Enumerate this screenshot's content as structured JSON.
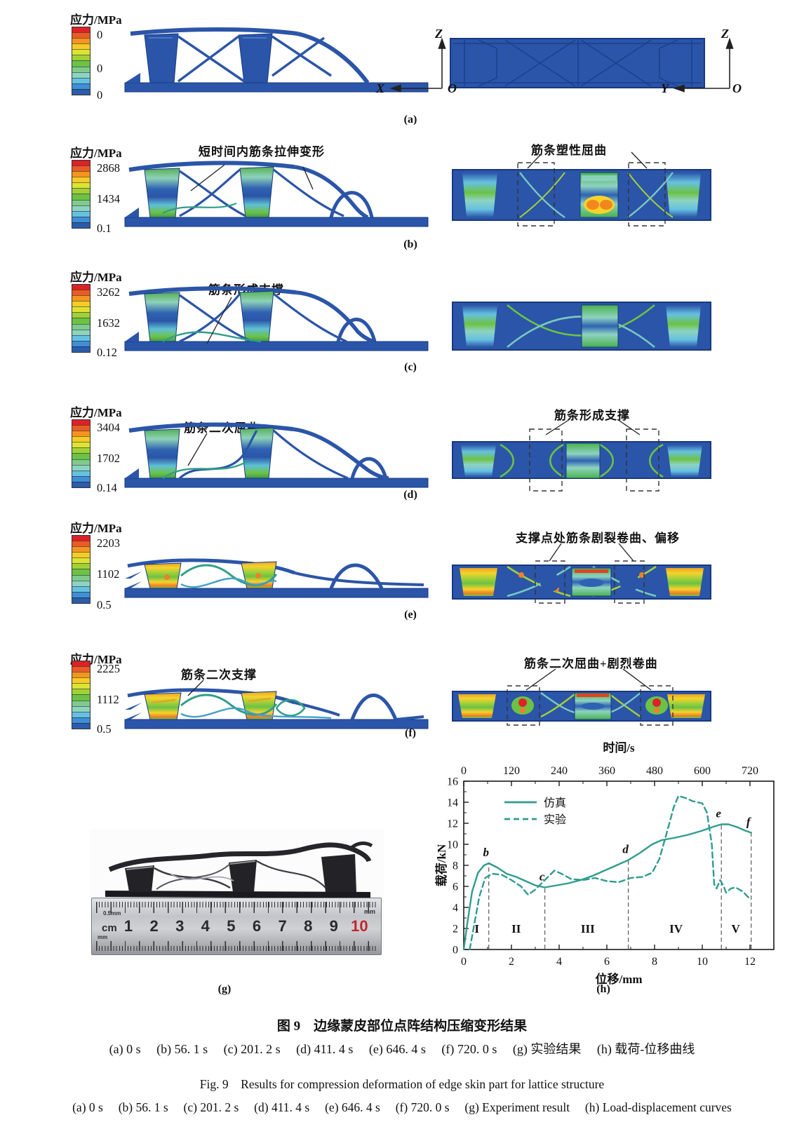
{
  "colors": {
    "accent_teal": "#2e9c8e",
    "structure_blue": "#2b55a8",
    "structure_edge": "#17397f",
    "colorbar_segments": [
      "#dc2127",
      "#ea5b28",
      "#f49422",
      "#f6ca28",
      "#dde335",
      "#a3d039",
      "#6cc244",
      "#7ecb8b",
      "#8ed3c0",
      "#66c1e1",
      "#3f8fd4",
      "#2c5cab"
    ]
  },
  "rows": [
    {
      "label": "(a)",
      "cb_title": "应力/MPa",
      "cb_max": "0",
      "cb_mid": "0",
      "cb_min": "0",
      "axis_left_v": "Z",
      "axis_left_h": "X",
      "axis_left_o": "O",
      "axis_right_v": "Z",
      "axis_right_h": "Y",
      "axis_right_o": "O"
    },
    {
      "label": "(b)",
      "cb_title": "应力/MPa",
      "cb_max": "2868",
      "cb_mid": "1434",
      "cb_min": "0.1",
      "ann_left": "短时间内筋条拉伸变形",
      "ann_right": "筋条塑性屈曲"
    },
    {
      "label": "(c)",
      "cb_title": "应力/MPa",
      "cb_max": "3262",
      "cb_mid": "1632",
      "cb_min": "0.12",
      "ann_left": "筋条形成支撑"
    },
    {
      "label": "(d)",
      "cb_title": "应力/MPa",
      "cb_max": "3404",
      "cb_mid": "1702",
      "cb_min": "0.14",
      "ann_left": "筋条二次屈曲",
      "ann_right": "筋条形成支撑"
    },
    {
      "label": "(e)",
      "cb_title": "应力/MPa",
      "cb_max": "2203",
      "cb_mid": "1102",
      "cb_min": "0.5",
      "ann_right": "支撑点处筋条剧裂卷曲、偏移"
    },
    {
      "label": "(f)",
      "cb_title": "应力/MPa",
      "cb_max": "2225",
      "cb_mid": "1112",
      "cb_min": "0.5",
      "ann_left": "筋条二次支撑",
      "ann_right": "筋条二次屈曲+剧烈卷曲"
    }
  ],
  "photo": {
    "label": "(g)",
    "ruler_fine": "0.5mm",
    "ruler_cm": "cm",
    "ruler_mm_top": "mm",
    "ruler_mm_bottom": "mm",
    "ruler_numbers": [
      "1",
      "2",
      "3",
      "4",
      "5",
      "6",
      "7",
      "8",
      "9",
      "10"
    ]
  },
  "chart": {
    "label": "(h)"
  },
  "chart_data": {
    "type": "line",
    "title_top_axis": "时间/s",
    "xlabel": "位移/mm",
    "ylabel": "载荷/kN",
    "xlim": [
      0,
      13
    ],
    "ylim": [
      0,
      16
    ],
    "toplim": [
      0,
      780
    ],
    "x_ticks": [
      0,
      2,
      4,
      6,
      8,
      10,
      12
    ],
    "top_ticks": [
      0,
      120,
      240,
      360,
      480,
      600,
      720
    ],
    "y_ticks": [
      0,
      2,
      4,
      6,
      8,
      10,
      12,
      14,
      16
    ],
    "grid": false,
    "legend_position": "upper-left",
    "line_color": "#2e9c8e",
    "legend": [
      {
        "name": "仿真",
        "style": "solid"
      },
      {
        "name": "实验",
        "style": "dashed"
      }
    ],
    "series": [
      {
        "name": "仿真",
        "style": "solid",
        "points": [
          [
            0,
            0
          ],
          [
            0.15,
            2.5
          ],
          [
            0.35,
            5.5
          ],
          [
            0.6,
            7.3
          ],
          [
            0.85,
            8.0
          ],
          [
            1.05,
            8.2
          ],
          [
            1.4,
            7.8
          ],
          [
            1.8,
            7.2
          ],
          [
            2.2,
            6.9
          ],
          [
            2.6,
            6.5
          ],
          [
            3.0,
            6.1
          ],
          [
            3.4,
            5.9
          ],
          [
            3.9,
            6.1
          ],
          [
            4.4,
            6.3
          ],
          [
            4.9,
            6.6
          ],
          [
            5.4,
            7.0
          ],
          [
            5.9,
            7.5
          ],
          [
            6.4,
            8.0
          ],
          [
            6.9,
            8.5
          ],
          [
            7.4,
            9.2
          ],
          [
            7.9,
            10.0
          ],
          [
            8.3,
            10.4
          ],
          [
            8.8,
            10.6
          ],
          [
            9.4,
            10.9
          ],
          [
            10.0,
            11.3
          ],
          [
            10.5,
            11.7
          ],
          [
            10.8,
            11.9
          ],
          [
            11.1,
            11.9
          ],
          [
            11.5,
            11.6
          ],
          [
            11.8,
            11.3
          ],
          [
            12.05,
            11.1
          ]
        ]
      },
      {
        "name": "实验",
        "style": "dashed",
        "points": [
          [
            0.25,
            0
          ],
          [
            0.45,
            2.5
          ],
          [
            0.65,
            5.0
          ],
          [
            0.9,
            6.8
          ],
          [
            1.2,
            7.2
          ],
          [
            1.6,
            7.1
          ],
          [
            2.0,
            6.6
          ],
          [
            2.4,
            6.0
          ],
          [
            2.7,
            5.2
          ],
          [
            3.0,
            5.7
          ],
          [
            3.4,
            6.6
          ],
          [
            3.8,
            7.5
          ],
          [
            4.1,
            7.2
          ],
          [
            4.5,
            6.7
          ],
          [
            5.0,
            6.6
          ],
          [
            5.5,
            6.8
          ],
          [
            6.0,
            6.5
          ],
          [
            6.5,
            6.4
          ],
          [
            7.0,
            6.8
          ],
          [
            7.5,
            6.9
          ],
          [
            7.9,
            7.3
          ],
          [
            8.2,
            8.6
          ],
          [
            8.5,
            11.0
          ],
          [
            8.8,
            13.5
          ],
          [
            9.0,
            14.6
          ],
          [
            9.3,
            14.4
          ],
          [
            9.6,
            14.1
          ],
          [
            10.0,
            13.9
          ],
          [
            10.2,
            13.0
          ],
          [
            10.4,
            10.0
          ],
          [
            10.5,
            6.2
          ],
          [
            10.6,
            5.8
          ],
          [
            10.75,
            6.6
          ],
          [
            10.9,
            6.0
          ],
          [
            11.0,
            5.4
          ],
          [
            11.2,
            5.8
          ],
          [
            11.4,
            5.9
          ],
          [
            11.7,
            5.5
          ],
          [
            12.0,
            4.8
          ]
        ]
      }
    ],
    "point_labels": [
      {
        "text": "b",
        "x": 1.05,
        "y": 8.2
      },
      {
        "text": "c",
        "x": 3.4,
        "y": 5.9
      },
      {
        "text": "d",
        "x": 6.9,
        "y": 8.5
      },
      {
        "text": "e",
        "x": 10.8,
        "y": 11.9
      },
      {
        "text": "f",
        "x": 12.05,
        "y": 11.1
      }
    ],
    "dividers": [
      {
        "x": 1.05,
        "top": 8.2
      },
      {
        "x": 3.4,
        "top": 5.9
      },
      {
        "x": 6.9,
        "top": 8.5
      },
      {
        "x": 10.8,
        "top": 11.9
      },
      {
        "x": 12.05,
        "top": 11.1
      }
    ],
    "region_labels": [
      {
        "text": "I",
        "x": 0.55
      },
      {
        "text": "II",
        "x": 2.2
      },
      {
        "text": "III",
        "x": 5.2
      },
      {
        "text": "IV",
        "x": 8.9
      },
      {
        "text": "V",
        "x": 11.4
      }
    ]
  },
  "captions": {
    "zh_title": "图 9　边缘蒙皮部位点阵结构压缩变形结果",
    "zh_items": "(a) 0 s　 (b) 56. 1 s　 (c) 201. 2 s　 (d) 411. 4 s　 (e) 646. 4 s　 (f) 720. 0 s　 (g) 实验结果　 (h) 载荷-位移曲线",
    "en_title": "Fig. 9　Results for compression deformation of edge skin part for lattice structure",
    "en_items": "(a) 0 s　 (b) 56. 1 s　 (c) 201. 2 s　 (d) 411. 4 s　 (e) 646. 4 s　 (f) 720. 0 s　 (g) Experiment result　 (h) Load-displacement curves"
  }
}
